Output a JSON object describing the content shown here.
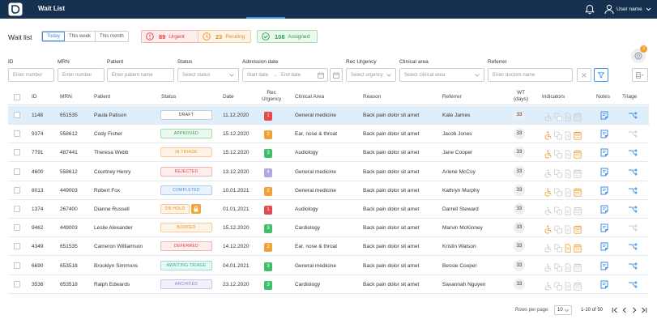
{
  "header": {
    "title": "Wait List",
    "user_name": "User name"
  },
  "page": {
    "title": "Wait list"
  },
  "period_tabs": [
    "Today",
    "This week",
    "This month"
  ],
  "stats": {
    "urgent": {
      "count": "89",
      "label": "Urgent"
    },
    "pending": {
      "count": "23",
      "label": "Pending"
    },
    "assigned": {
      "count": "108",
      "label": "Assigned"
    }
  },
  "help_badge": "3",
  "filters": {
    "id": {
      "label": "ID",
      "placeholder": "Enter number"
    },
    "mrn": {
      "label": "MRN",
      "placeholder": "Enter number"
    },
    "patient": {
      "label": "Patient",
      "placeholder": "Enter patient name"
    },
    "status": {
      "label": "Status",
      "placeholder": "Select status"
    },
    "admission": {
      "label": "Admission date",
      "start": "Start date",
      "end": "End date"
    },
    "urgency": {
      "label": "Rec Urgency",
      "placeholder": "Select urgency"
    },
    "clinical": {
      "label": "Clinical area",
      "placeholder": "Select clinical area"
    },
    "referrer": {
      "label": "Referrer",
      "placeholder": "Enter doctors name"
    }
  },
  "columns": {
    "id": "ID",
    "mrn": "MRN",
    "patient": "Patient",
    "status": "Status",
    "date": "Date",
    "rec1": "Rec",
    "rec2": "Urgency",
    "clinical": "Clinical Area",
    "reason": "Reason",
    "referrer": "Referrer",
    "wt1": "WT",
    "wt2": "(days)",
    "indicators": "Indicators",
    "notes": "Notes",
    "triage": "Triage"
  },
  "colors": {
    "urg_1": "#e5484d",
    "urg_2": "#f0a23a",
    "urg_3": "#3fbf6a",
    "urg_4": "#b4a6de",
    "indicator_active": "#f0a23a",
    "indicator_inactive": "#c6cad1",
    "accent": "#3d8ee6"
  },
  "rows": [
    {
      "id": "1148",
      "mrn": "651535",
      "patient": "Paula Patison",
      "status": "DRAFT",
      "status_kind": "draft",
      "date": "11.12.2020",
      "urgency": "1",
      "clinical": "General medicine",
      "reason": "Back pain dolor sit amet",
      "referrer": "Kate James",
      "wt": "33",
      "ind": [
        0,
        0,
        0,
        0
      ],
      "selected": true,
      "lock": false,
      "triage_active": true
    },
    {
      "id": "9374",
      "mrn": "558612",
      "patient": "Cody Fisher",
      "status": "APPROVED",
      "status_kind": "approved",
      "date": "15.12.2020",
      "urgency": "2",
      "clinical": "Ear, nose & throat",
      "reason": "Back pain dolor sit amet",
      "referrer": "Jacob Jones",
      "wt": "33",
      "ind": [
        1,
        0,
        0,
        1
      ],
      "selected": false,
      "lock": false,
      "triage_active": false
    },
    {
      "id": "7791",
      "mrn": "487441",
      "patient": "Theresa Webb",
      "status": "IN TRIAGE",
      "status_kind": "triage",
      "date": "15.12.2020",
      "urgency": "3",
      "clinical": "Audiology",
      "reason": "Back pain dolor sit amet",
      "referrer": "Jane Cooper",
      "wt": "33",
      "ind": [
        1,
        0,
        0,
        1
      ],
      "selected": false,
      "lock": false,
      "triage_active": true
    },
    {
      "id": "4600",
      "mrn": "558612",
      "patient": "Courtney Henry",
      "status": "REJECTED",
      "status_kind": "rejected",
      "date": "13.12.2020",
      "urgency": "4",
      "clinical": "General medicine",
      "reason": "Back pain dolor sit amet",
      "referrer": "Arlene McCoy",
      "wt": "33",
      "ind": [
        0,
        0,
        0,
        0
      ],
      "selected": false,
      "lock": false,
      "triage_active": true
    },
    {
      "id": "8013",
      "mrn": "449003",
      "patient": "Robert Fox",
      "status": "COMPLETED",
      "status_kind": "completed",
      "date": "10.01.2021",
      "urgency": "2",
      "clinical": "General medicine",
      "reason": "Back pain dolor sit amet",
      "referrer": "Kathryn Murphy",
      "wt": "33",
      "ind": [
        1,
        0,
        0,
        1
      ],
      "selected": false,
      "lock": false,
      "triage_active": true
    },
    {
      "id": "1374",
      "mrn": "267400",
      "patient": "Dianne Russell",
      "status": "ON HOLD",
      "status_kind": "onhold",
      "date": "01.01.2021",
      "urgency": "1",
      "clinical": "Audiology",
      "reason": "Back pain dolor sit amet",
      "referrer": "Darrell Steward",
      "wt": "33",
      "ind": [
        0,
        0,
        0,
        0
      ],
      "selected": false,
      "lock": true,
      "triage_active": true
    },
    {
      "id": "9462",
      "mrn": "449003",
      "patient": "Leslie Alexander",
      "status": "BOOKED",
      "status_kind": "booked",
      "date": "15.12.2020",
      "urgency": "3",
      "clinical": "Cardiology",
      "reason": "Back pain dolor sit amet",
      "referrer": "Marvin McKinney",
      "wt": "33",
      "ind": [
        1,
        0,
        0,
        1
      ],
      "selected": false,
      "lock": false,
      "triage_active": false
    },
    {
      "id": "4349",
      "mrn": "651535",
      "patient": "Cameron Williamson",
      "status": "DEFERRED",
      "status_kind": "deferred",
      "date": "14.12.2020",
      "urgency": "2",
      "clinical": "Ear, nose & throat",
      "reason": "Back pain dolor sit amet",
      "referrer": "Kristin Watson",
      "wt": "33",
      "ind": [
        0,
        0,
        1,
        1
      ],
      "selected": false,
      "lock": false,
      "triage_active": true
    },
    {
      "id": "6690",
      "mrn": "653518",
      "patient": "Brooklyn Simmons",
      "status": "AWAITING TRIAGE",
      "status_kind": "awaiting",
      "date": "04.01.2021",
      "urgency": "3",
      "clinical": "General medicine",
      "reason": "Back pain dolor sit amet",
      "referrer": "Bessie Cooper",
      "wt": "33",
      "ind": [
        0,
        0,
        0,
        0
      ],
      "selected": false,
      "lock": false,
      "triage_active": true
    },
    {
      "id": "3536",
      "mrn": "653518",
      "patient": "Ralph Edwards",
      "status": "ARCHIVED",
      "status_kind": "archived",
      "date": "23.12.2020",
      "urgency": "3",
      "clinical": "Cardiology",
      "reason": "Back pain dolor sit amet",
      "referrer": "Savannah Nguyen",
      "wt": "33",
      "ind": [
        0,
        0,
        0,
        0
      ],
      "selected": false,
      "lock": false,
      "triage_active": true
    }
  ],
  "pagination": {
    "rows_label": "Rows per page:",
    "rows_value": "10",
    "range": "1-10 of 50"
  }
}
